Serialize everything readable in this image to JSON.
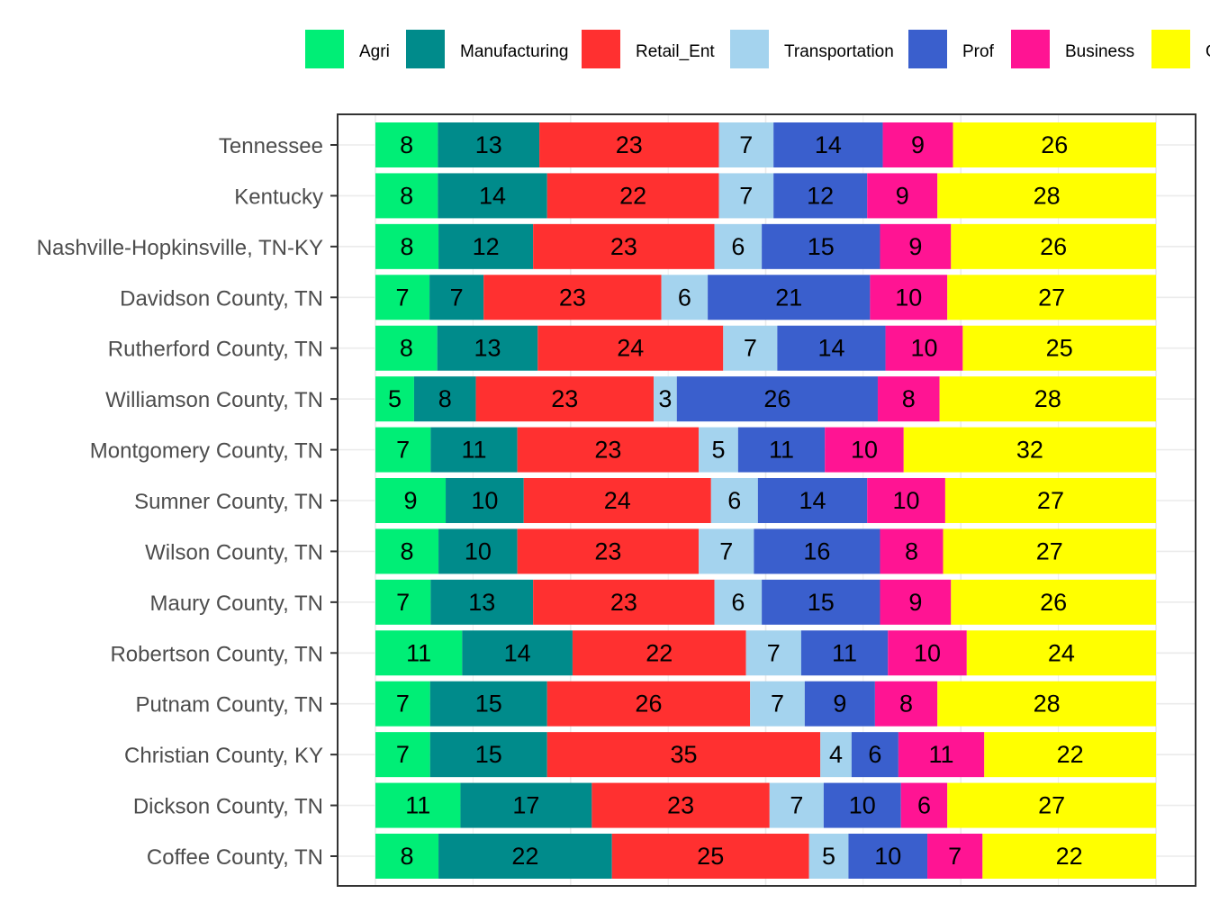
{
  "chart_data": {
    "type": "bar",
    "orientation": "horizontal",
    "stacked": true,
    "xlim": [
      0,
      100
    ],
    "grid": true,
    "legend_position": "top",
    "categories": [
      "Tennessee",
      "Kentucky",
      "Nashville-Hopkinsville, TN-KY",
      "Davidson County, TN",
      "Rutherford County, TN",
      "Williamson County, TN",
      "Montgomery County, TN",
      "Sumner County, TN",
      "Wilson County, TN",
      "Maury County, TN",
      "Robertson County, TN",
      "Putnam County, TN",
      "Christian County, KY",
      "Dickson County, TN",
      "Coffee County, TN"
    ],
    "series": [
      {
        "name": "Agri",
        "color": "#00EE76",
        "values": [
          8,
          8,
          8,
          7,
          8,
          5,
          7,
          9,
          8,
          7,
          11,
          7,
          7,
          11,
          8
        ]
      },
      {
        "name": "Manufacturing",
        "color": "#008B8B",
        "values": [
          13,
          14,
          12,
          7,
          13,
          8,
          11,
          10,
          10,
          13,
          14,
          15,
          15,
          17,
          22
        ]
      },
      {
        "name": "Retail_Ent",
        "color": "#FF3030",
        "values": [
          23,
          22,
          23,
          23,
          24,
          23,
          23,
          24,
          23,
          23,
          22,
          26,
          35,
          23,
          25
        ]
      },
      {
        "name": "Transportation",
        "color": "#A4D3EE",
        "values": [
          7,
          7,
          6,
          6,
          7,
          3,
          5,
          6,
          7,
          6,
          7,
          7,
          4,
          7,
          5
        ]
      },
      {
        "name": "Prof",
        "color": "#3A5FCD",
        "values": [
          14,
          12,
          15,
          21,
          14,
          26,
          11,
          14,
          16,
          15,
          11,
          9,
          6,
          10,
          10
        ]
      },
      {
        "name": "Business",
        "color": "#FF1493",
        "values": [
          9,
          9,
          9,
          10,
          10,
          8,
          10,
          10,
          8,
          9,
          10,
          8,
          11,
          6,
          7
        ]
      },
      {
        "name": "Other",
        "color": "#FFFF00",
        "values": [
          26,
          28,
          26,
          27,
          25,
          28,
          32,
          27,
          27,
          26,
          24,
          28,
          22,
          27,
          22
        ]
      }
    ]
  }
}
